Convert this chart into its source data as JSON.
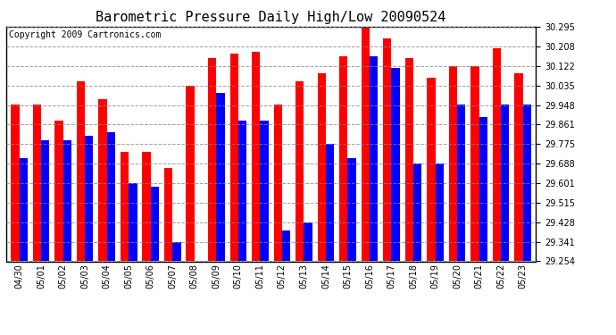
{
  "title": "Barometric Pressure Daily High/Low 20090524",
  "copyright": "Copyright 2009 Cartronics.com",
  "dates": [
    "04/30",
    "05/01",
    "05/02",
    "05/03",
    "05/04",
    "05/05",
    "05/06",
    "05/07",
    "05/08",
    "05/09",
    "05/10",
    "05/11",
    "05/12",
    "05/13",
    "05/14",
    "05/15",
    "05/16",
    "05/17",
    "05/18",
    "05/19",
    "05/20",
    "05/21",
    "05/22",
    "05/23"
  ],
  "highs": [
    29.948,
    29.948,
    29.878,
    30.052,
    29.975,
    29.74,
    29.74,
    29.67,
    30.035,
    30.157,
    30.175,
    30.183,
    29.948,
    30.052,
    30.087,
    30.165,
    30.295,
    30.243,
    30.157,
    30.07,
    30.122,
    30.122,
    30.2,
    30.087
  ],
  "lows": [
    29.714,
    29.792,
    29.792,
    29.81,
    29.827,
    29.601,
    29.584,
    29.34,
    29.254,
    30.0,
    29.88,
    29.88,
    29.392,
    29.428,
    29.775,
    29.714,
    30.165,
    30.113,
    29.688,
    29.688,
    29.948,
    29.896,
    29.948,
    29.948
  ],
  "ymin": 29.254,
  "ymax": 30.295,
  "yticks": [
    29.254,
    29.341,
    29.428,
    29.515,
    29.601,
    29.688,
    29.775,
    29.861,
    29.948,
    30.035,
    30.122,
    30.208,
    30.295
  ],
  "high_color": "#FF0000",
  "low_color": "#0000FF",
  "background_color": "#FFFFFF",
  "grid_color": "#888888",
  "title_fontsize": 11,
  "copyright_fontsize": 7,
  "bar_width": 0.38
}
